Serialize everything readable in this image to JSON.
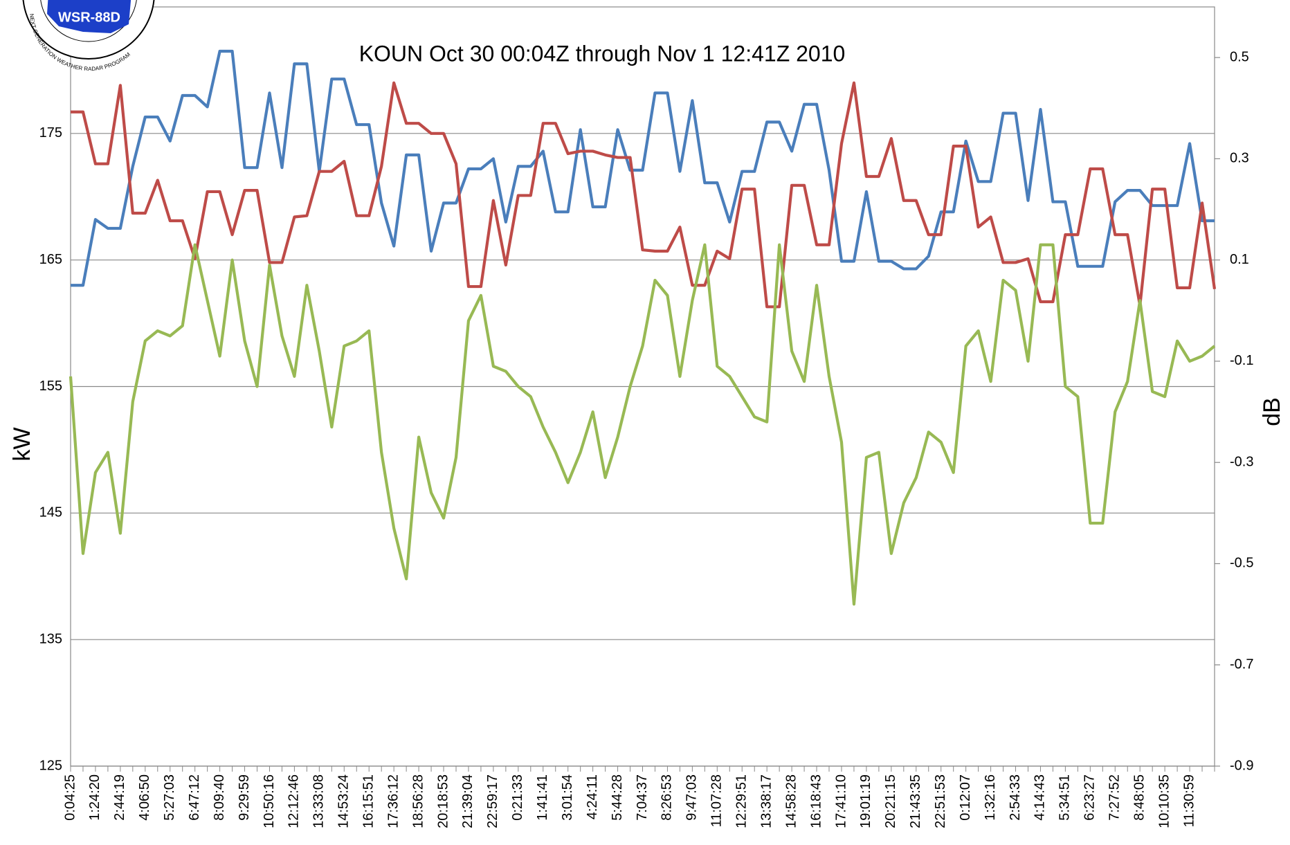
{
  "chart_data": {
    "type": "line",
    "title": "KOUN Oct 30 00:04Z through Nov 1 12:41Z 2010",
    "logo": {
      "label": "WSR-88D",
      "ring": "NEXT GENERATION WEATHER RADAR PROGRAM"
    },
    "y_label": "kW",
    "y2_label": "dB",
    "categories": [
      "0:04:25",
      null,
      "1:24:20",
      null,
      "2:44:19",
      null,
      "4:06:50",
      null,
      "5:27:03",
      null,
      "6:47:12",
      null,
      "8:09:40",
      null,
      "9:29:59",
      null,
      "10:50:16",
      null,
      "12:12:46",
      null,
      "13:33:08",
      null,
      "14:53:24",
      null,
      "16:15:51",
      null,
      "17:36:12",
      null,
      "18:56:28",
      null,
      "20:18:53",
      null,
      "21:39:04",
      null,
      "22:59:17",
      null,
      "0:21:33",
      null,
      "1:41:41",
      null,
      "3:01:54",
      null,
      "4:24:11",
      null,
      "5:44:28",
      null,
      "7:04:37",
      null,
      "8:26:53",
      null,
      "9:47:03",
      null,
      "11:07:28",
      null,
      "12:29:51",
      null,
      "13:38:17",
      null,
      "14:58:28",
      null,
      "16:18:43",
      null,
      "17:41:10",
      null,
      "19:01:19",
      null,
      "20:21:15",
      null,
      "21:43:35",
      null,
      "22:51:53",
      null,
      "0:12:07",
      null,
      "1:32:16",
      null,
      "2:54:33",
      null,
      "4:14:43",
      null,
      "5:34:51",
      null,
      "6:23:27",
      null,
      "7:27:52",
      null,
      "8:48:05",
      null,
      "10:10:35",
      null,
      "11:30:59",
      null,
      null
    ],
    "series": [
      {
        "color": "#4a7ebb",
        "values": [
          163,
          163,
          168.2,
          167.5,
          167.5,
          172.4,
          176.3,
          176.3,
          174.4,
          178,
          178,
          177.1,
          181.5,
          181.5,
          172.3,
          172.3,
          178.2,
          172.3,
          180.5,
          180.5,
          172,
          179.3,
          179.3,
          175.7,
          175.7,
          169.5,
          166.1,
          173.3,
          173.3,
          165.7,
          169.5,
          169.5,
          172.2,
          172.2,
          173,
          168,
          172.4,
          172.4,
          173.6,
          168.8,
          168.8,
          175.3,
          169.2,
          169.2,
          175.3,
          172.1,
          172.1,
          178.2,
          178.2,
          172,
          177.6,
          171.1,
          171.1,
          168,
          172,
          172,
          175.9,
          175.9,
          173.6,
          177.3,
          177.3,
          172.1,
          164.9,
          164.9,
          170.4,
          164.9,
          164.9,
          164.3,
          164.3,
          165.3,
          168.8,
          168.8,
          174.4,
          171.2,
          171.2,
          176.6,
          176.6,
          169.7,
          176.9,
          169.6,
          169.6,
          164.5,
          164.5,
          164.5,
          169.6,
          170.5,
          170.5,
          169.3,
          169.3,
          169.3,
          174.2,
          168.1,
          168.1
        ]
      },
      {
        "color": "#be4b48",
        "values": [
          176.7,
          176.7,
          172.6,
          172.6,
          178.8,
          168.7,
          168.7,
          171.3,
          168.1,
          168.1,
          165.1,
          170.4,
          170.4,
          167,
          170.5,
          170.5,
          164.8,
          164.8,
          168.4,
          168.5,
          172,
          172,
          172.8,
          168.5,
          168.5,
          172.4,
          179,
          175.8,
          175.8,
          175,
          175,
          172.6,
          162.9,
          162.9,
          169.7,
          164.6,
          170.1,
          170.1,
          175.8,
          175.8,
          173.4,
          173.6,
          173.6,
          173.3,
          173.1,
          173.1,
          165.8,
          165.7,
          165.7,
          167.6,
          163,
          163,
          165.7,
          165.1,
          170.6,
          170.6,
          161.3,
          161.3,
          170.9,
          170.9,
          166.2,
          166.2,
          174.2,
          179,
          171.6,
          171.6,
          174.6,
          169.7,
          169.7,
          167,
          167,
          174,
          174,
          167.6,
          168.4,
          164.8,
          164.8,
          165.1,
          161.7,
          161.7,
          167,
          167,
          172.2,
          172.2,
          167,
          167,
          161.4,
          170.6,
          170.6,
          162.8,
          162.8,
          169.5,
          162.7
        ]
      },
      {
        "color": "#98b954",
        "axis": "y2",
        "values": [
          -0.13,
          -0.48,
          -0.32,
          -0.28,
          -0.44,
          -0.18,
          -0.06,
          -0.04,
          -0.05,
          -0.03,
          0.13,
          0.02,
          -0.09,
          0.1,
          -0.06,
          -0.15,
          0.09,
          -0.05,
          -0.13,
          0.05,
          -0.08,
          -0.23,
          -0.07,
          -0.06,
          -0.04,
          -0.28,
          -0.43,
          -0.53,
          -0.25,
          -0.36,
          -0.41,
          -0.29,
          -0.02,
          0.03,
          -0.11,
          -0.12,
          -0.15,
          -0.17,
          -0.23,
          -0.28,
          -0.34,
          -0.28,
          -0.2,
          -0.33,
          -0.25,
          -0.15,
          -0.07,
          0.06,
          0.03,
          -0.13,
          0.02,
          0.13,
          -0.11,
          -0.13,
          -0.17,
          -0.21,
          -0.22,
          0.13,
          -0.08,
          -0.14,
          0.05,
          -0.13,
          -0.26,
          -0.58,
          -0.29,
          -0.28,
          -0.48,
          -0.38,
          -0.33,
          -0.24,
          -0.26,
          -0.32,
          -0.07,
          -0.04,
          -0.14,
          0.06,
          0.04,
          -0.1,
          0.13,
          0.13,
          -0.15,
          -0.17,
          -0.42,
          -0.42,
          -0.2,
          -0.14,
          0.02,
          -0.16,
          -0.17,
          -0.06,
          -0.1,
          -0.09,
          -0.07
        ]
      }
    ],
    "ylim": [
      125,
      185
    ],
    "yticks": [
      125,
      135,
      145,
      155,
      165,
      175
    ],
    "y2lim": [
      -0.9,
      0.6
    ],
    "y2ticks": [
      -0.9,
      -0.7,
      -0.5,
      -0.3,
      -0.1,
      0.1,
      0.3,
      0.5
    ],
    "grid": true
  }
}
